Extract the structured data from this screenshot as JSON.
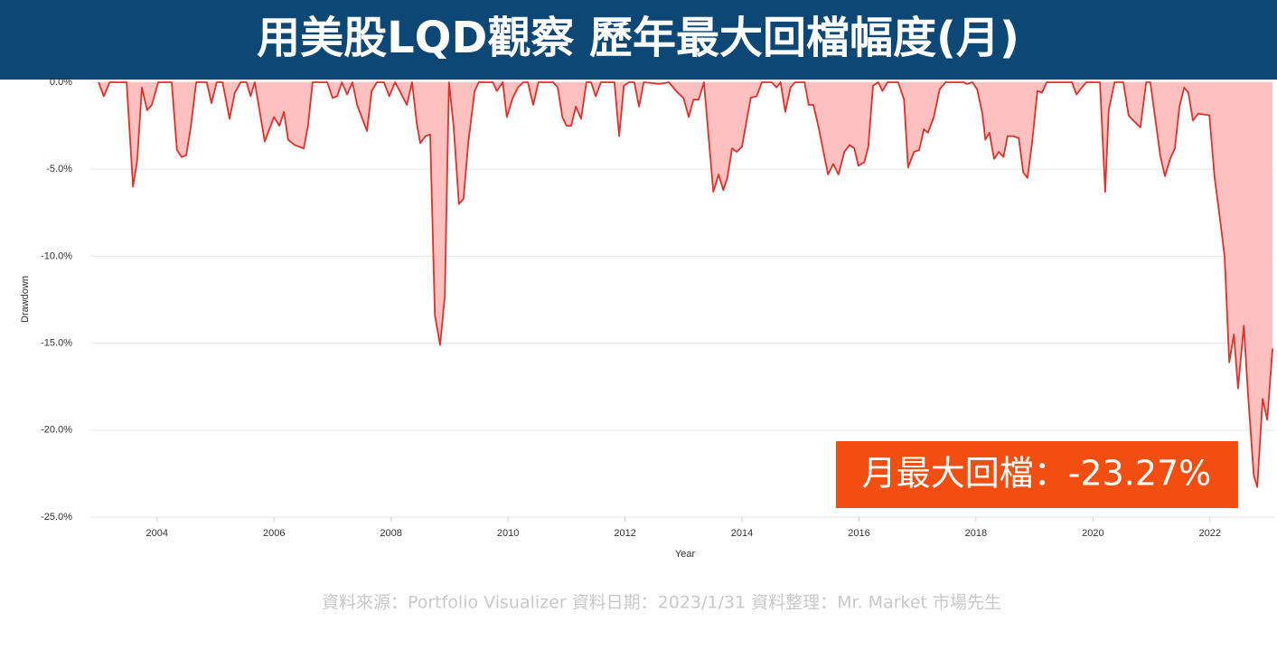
{
  "chart_data": {
    "type": "area",
    "title": "用美股LQD觀察 歷年最大回檔幅度(月)",
    "xlabel": "Year",
    "ylabel": "Drawdown",
    "annotation": "月最大回檔：-23.27%",
    "source": "資料來源：Portfolio Visualizer  資料日期：2023/1/31   資料整理：Mr. Market 市場先生",
    "color": "#e0302a",
    "fill_color": "#ffc0c0",
    "grid": true,
    "xlim": [
      2002.86,
      2023.1
    ],
    "xticks": [
      2004,
      2006,
      2008,
      2010,
      2012,
      2014,
      2016,
      2018,
      2020,
      2022
    ],
    "ylim": [
      -25,
      0
    ],
    "yticks": [
      {
        "value": 0,
        "label": "0.0%"
      },
      {
        "value": -5,
        "label": "-5.0%"
      },
      {
        "value": -10,
        "label": "-10.0%"
      },
      {
        "value": -15,
        "label": "-15.0%"
      },
      {
        "value": -20,
        "label": "-20.0%"
      },
      {
        "value": -25,
        "label": "-25.0%"
      }
    ],
    "x": [
      2003.0,
      2003.09,
      2003.19,
      2003.48,
      2003.59,
      2003.66,
      2003.74,
      2003.83,
      2003.91,
      2004.02,
      2004.25,
      2004.34,
      2004.42,
      2004.5,
      2004.58,
      2004.67,
      2004.85,
      2004.93,
      2005.02,
      2005.12,
      2005.24,
      2005.33,
      2005.43,
      2005.53,
      2005.6,
      2005.67,
      2005.84,
      2006.0,
      2006.09,
      2006.17,
      2006.24,
      2006.35,
      2006.51,
      2006.58,
      2006.66,
      2006.91,
      2007.0,
      2007.08,
      2007.16,
      2007.25,
      2007.34,
      2007.42,
      2007.59,
      2007.67,
      2007.76,
      2007.88,
      2007.97,
      2008.07,
      2008.27,
      2008.36,
      2008.44,
      2008.5,
      2008.59,
      2008.67,
      2008.75,
      2008.84,
      2008.92,
      2008.99,
      2009.07,
      2009.16,
      2009.24,
      2009.32,
      2009.43,
      2009.5,
      2009.74,
      2009.81,
      2009.91,
      2009.98,
      2010.08,
      2010.17,
      2010.26,
      2010.34,
      2010.43,
      2010.52,
      2010.77,
      2010.85,
      2010.93,
      2011.0,
      2011.08,
      2011.16,
      2011.25,
      2011.34,
      2011.42,
      2011.5,
      2011.59,
      2011.82,
      2011.9,
      2011.98,
      2012.07,
      2012.16,
      2012.24,
      2012.32,
      2012.59,
      2012.75,
      2012.9,
      2013.0,
      2013.09,
      2013.17,
      2013.26,
      2013.35,
      2013.51,
      2013.6,
      2013.68,
      2013.75,
      2013.83,
      2013.91,
      2014.0,
      2014.15,
      2014.25,
      2014.34,
      2014.51,
      2014.59,
      2014.66,
      2014.74,
      2014.83,
      2014.91,
      2015.07,
      2015.14,
      2015.22,
      2015.31,
      2015.47,
      2015.56,
      2015.65,
      2015.75,
      2015.84,
      2015.92,
      2015.99,
      2016.09,
      2016.16,
      2016.24,
      2016.33,
      2016.4,
      2016.49,
      2016.67,
      2016.77,
      2016.84,
      2016.94,
      2017.03,
      2017.11,
      2017.18,
      2017.28,
      2017.38,
      2017.48,
      2017.79,
      2017.85,
      2017.94,
      2018.02,
      2018.11,
      2018.16,
      2018.23,
      2018.31,
      2018.39,
      2018.47,
      2018.54,
      2018.64,
      2018.73,
      2018.81,
      2018.88,
      2018.96,
      2019.05,
      2019.13,
      2019.21,
      2019.64,
      2019.72,
      2019.81,
      2019.89,
      2020.12,
      2020.21,
      2020.27,
      2020.37,
      2020.52,
      2020.61,
      2020.69,
      2020.81,
      2020.91,
      2020.98,
      2021.15,
      2021.23,
      2021.32,
      2021.4,
      2021.48,
      2021.56,
      2021.63,
      2021.71,
      2021.8,
      2021.99,
      2022.08,
      2022.17,
      2022.25,
      2022.33,
      2022.41,
      2022.48,
      2022.58,
      2022.65,
      2022.75,
      2022.81,
      2022.9,
      2022.98,
      2023.07
    ],
    "values": [
      0,
      -0.8,
      0,
      0,
      -6,
      -4.5,
      -0.3,
      -1.6,
      -1.3,
      0,
      0,
      -3.9,
      -4.3,
      -4.2,
      -2.5,
      0,
      0,
      -1.2,
      0,
      0,
      -2.1,
      -0.6,
      0,
      0,
      -0.8,
      0,
      -3.4,
      -2,
      -2.5,
      -1.7,
      -3.3,
      -3.6,
      -3.8,
      -2.5,
      0,
      0,
      -0.9,
      -0.8,
      0,
      -0.7,
      0,
      -1.3,
      -2.8,
      -0.5,
      0,
      0,
      -0.8,
      0,
      -1.3,
      0,
      -2.4,
      -3.5,
      -3.1,
      -3,
      -13.4,
      -15.1,
      -12.3,
      0,
      -2.5,
      -7,
      -6.7,
      -3.5,
      -0.5,
      0,
      0,
      -0.5,
      0,
      -2,
      -0.9,
      -0.3,
      0,
      0,
      -1.3,
      0,
      0,
      -0.3,
      -2,
      -2.5,
      -2.5,
      -1.4,
      -2.1,
      0,
      0,
      -0.8,
      0,
      0,
      -3.1,
      -0.2,
      0,
      0,
      -1.4,
      0,
      -0.1,
      0,
      -0.6,
      -0.9,
      -2,
      -1,
      -1,
      0,
      -6.3,
      -5.3,
      -6.2,
      -5.5,
      -3.8,
      -4,
      -3.7,
      -0.9,
      -0.8,
      0,
      0,
      -0.3,
      0,
      -1.7,
      -0.3,
      0,
      0,
      -1.3,
      -1.3,
      -2.6,
      -5.3,
      -4.7,
      -5.3,
      -4,
      -3.6,
      -3.8,
      -4.8,
      -4.6,
      -3.7,
      -0.2,
      0,
      -0.5,
      0,
      0,
      -1,
      -4.9,
      -4,
      -3.9,
      -2.7,
      -2.9,
      -2,
      -0.4,
      0,
      0,
      -0.1,
      0,
      -0.4,
      -1.8,
      -3.3,
      -2.9,
      -4.4,
      -4,
      -4.3,
      -3.1,
      -3.1,
      -3.2,
      -5.2,
      -5.5,
      -3.5,
      -0.5,
      -0.6,
      0,
      0,
      -0.7,
      -0.3,
      0,
      0,
      -6.3,
      -1.6,
      0,
      0,
      -1.9,
      -2.2,
      -2.6,
      0,
      0,
      -4.2,
      -5.4,
      -4.4,
      -3.8,
      -1.4,
      -0.3,
      -0.6,
      -2.2,
      -1.8,
      -1.9,
      -5.5,
      -7.8,
      -10,
      -16.1,
      -14.5,
      -17.6,
      -14,
      -17.9,
      -22.6,
      -23.27,
      -18.2,
      -19.4,
      -15.3
    ]
  }
}
